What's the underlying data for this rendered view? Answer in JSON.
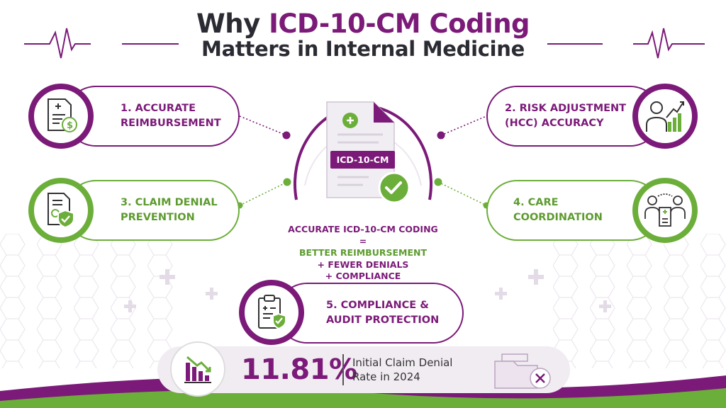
{
  "title": {
    "prefix": "Why ",
    "accent": "ICD-10-CM Coding",
    "line2": "Matters in Internal Medicine"
  },
  "colors": {
    "purple": "#7b1a78",
    "green": "#6cae3a",
    "dark": "#2b2b33"
  },
  "items": [
    {
      "line1": "1. ACCURATE",
      "line2": "REIMBURSEMENT",
      "icon": "document-dollar-icon",
      "color": "purple"
    },
    {
      "line1": "2. RISK ADJUSTMENT",
      "line2": "(HCC) ACCURACY",
      "icon": "patient-growth-chart-icon",
      "color": "purple"
    },
    {
      "line1": "3. CLAIM DENIAL",
      "line2": "PREVENTION",
      "icon": "document-shield-check-icon",
      "color": "green"
    },
    {
      "line1": "4. CARE",
      "line2": "COORDINATION",
      "icon": "doctors-exchange-icon",
      "color": "green"
    },
    {
      "line1": "5. COMPLIANCE &",
      "line2": "AUDIT PROTECTION",
      "icon": "clipboard-shield-icon",
      "color": "purple"
    }
  ],
  "center": {
    "doc_label": "ICD-10-CM",
    "equation": {
      "line1": "ACCURATE ICD-10-CM CODING",
      "equals": "=",
      "line2": "BETTER REIMBURSEMENT",
      "line3": "+ FEWER DENIALS",
      "line4": "+ COMPLIANCE"
    }
  },
  "stat": {
    "value": "11.81%",
    "label_line1": "Initial Claim Denial",
    "label_line2": "Rate in 2024",
    "left_icon": "declining-bar-chart-icon",
    "right_icon": "rejected-folder-icon"
  }
}
